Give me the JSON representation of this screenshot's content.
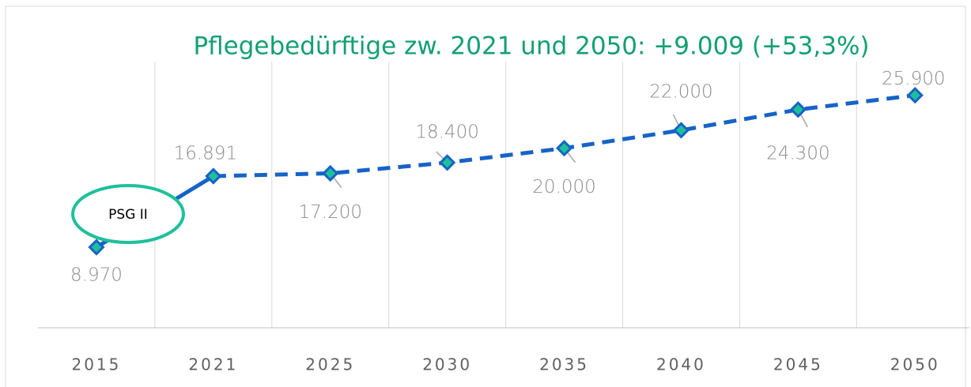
{
  "chart_data": {
    "type": "line",
    "title": "Pflegebedürftige zw. 2021 und 2050: +9.009 (+53,3%)",
    "title_color": "#12a070",
    "categories": [
      "2015",
      "2021",
      "2025",
      "2030",
      "2035",
      "2040",
      "2045",
      "2050"
    ],
    "series": [
      {
        "color": "#1663c7",
        "marker_color": "#1ec09a",
        "values": [
          8970,
          16891,
          17200,
          18400,
          20000,
          22000,
          24300,
          25900
        ],
        "value_labels": [
          "8.970",
          "16.891",
          "17.200",
          "18.400",
          "20.000",
          "22.000",
          "24.300",
          "25.900"
        ],
        "dashed_from": 1
      }
    ],
    "ylim": [
      0,
      30000
    ],
    "annotations": [
      {
        "text": "PSG II",
        "color": "#1ec09a"
      }
    ]
  }
}
